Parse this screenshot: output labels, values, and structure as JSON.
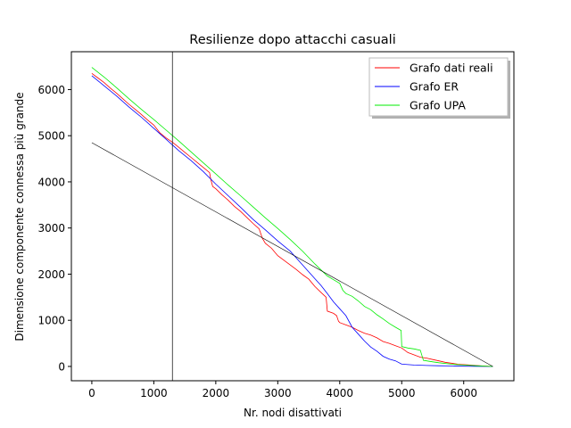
{
  "chart_data": {
    "type": "line",
    "title": "Resilienze dopo attacchi casuali",
    "xlabel": "Nr. nodi disattivati",
    "ylabel": "Dimensione componente connessa più grande",
    "xlim": [
      -330,
      6810
    ],
    "ylim": [
      -310,
      6820
    ],
    "xticks": [
      0,
      1000,
      2000,
      3000,
      4000,
      5000,
      6000
    ],
    "yticks": [
      0,
      1000,
      2000,
      3000,
      4000,
      5000,
      6000
    ],
    "grid": false,
    "legend_position": "top-right",
    "series": [
      {
        "name": "Grafo dati reali",
        "color": "#ff0000",
        "x": [
          0,
          100,
          200,
          300,
          400,
          500,
          600,
          700,
          800,
          900,
          1000,
          1100,
          1200,
          1300,
          1400,
          1500,
          1600,
          1700,
          1800,
          1900,
          1920,
          1950,
          2000,
          2100,
          2200,
          2300,
          2400,
          2500,
          2600,
          2700,
          2750,
          2800,
          2900,
          3000,
          3100,
          3200,
          3300,
          3400,
          3500,
          3600,
          3700,
          3780,
          3800,
          3900,
          3950,
          3980,
          4000,
          4100,
          4200,
          4300,
          4400,
          4500,
          4600,
          4700,
          4800,
          4900,
          5000,
          5100,
          5200,
          5300,
          5400,
          5500,
          5600,
          5700,
          5800,
          5900,
          6000,
          6100,
          6200,
          6300,
          6470
        ],
        "y": [
          6350,
          6250,
          6150,
          6030,
          5920,
          5800,
          5680,
          5570,
          5460,
          5340,
          5230,
          5060,
          4950,
          4860,
          4750,
          4640,
          4530,
          4420,
          4310,
          4200,
          4050,
          3900,
          3850,
          3720,
          3600,
          3470,
          3360,
          3230,
          3100,
          2980,
          2780,
          2670,
          2560,
          2400,
          2300,
          2200,
          2100,
          1990,
          1890,
          1730,
          1600,
          1500,
          1200,
          1150,
          1100,
          980,
          950,
          900,
          850,
          780,
          720,
          680,
          620,
          540,
          500,
          450,
          400,
          300,
          250,
          200,
          180,
          150,
          120,
          90,
          70,
          50,
          40,
          30,
          20,
          10,
          0
        ]
      },
      {
        "name": "Grafo ER",
        "color": "#0000ff",
        "x": [
          0,
          200,
          400,
          600,
          800,
          1000,
          1200,
          1400,
          1600,
          1800,
          2000,
          2200,
          2400,
          2600,
          2800,
          3000,
          3200,
          3400,
          3600,
          3700,
          3800,
          3900,
          4000,
          4100,
          4200,
          4300,
          4400,
          4500,
          4600,
          4700,
          4800,
          4900,
          5000,
          5200,
          5400,
          5600,
          5800,
          6000,
          6200,
          6470
        ],
        "y": [
          6300,
          6080,
          5860,
          5620,
          5400,
          5160,
          4920,
          4680,
          4460,
          4220,
          3950,
          3700,
          3450,
          3190,
          2960,
          2720,
          2500,
          2200,
          1900,
          1750,
          1580,
          1400,
          1250,
          1100,
          850,
          700,
          550,
          420,
          330,
          220,
          160,
          120,
          50,
          30,
          20,
          15,
          10,
          5,
          2,
          0
        ]
      },
      {
        "name": "Grafo UPA",
        "color": "#00ee00",
        "x": [
          0,
          200,
          400,
          600,
          800,
          1000,
          1200,
          1400,
          1600,
          1800,
          2000,
          2200,
          2400,
          2600,
          2800,
          3000,
          3200,
          3400,
          3600,
          3800,
          3900,
          4000,
          4050,
          4100,
          4200,
          4300,
          4400,
          4500,
          4600,
          4700,
          4800,
          4900,
          4990,
          5000,
          5100,
          5200,
          5300,
          5350,
          5400,
          5500,
          5600,
          5800,
          6000,
          6200,
          6470
        ],
        "y": [
          6480,
          6270,
          6040,
          5800,
          5570,
          5350,
          5120,
          4890,
          4650,
          4410,
          4170,
          3930,
          3700,
          3460,
          3220,
          2990,
          2750,
          2500,
          2220,
          1960,
          1880,
          1800,
          1650,
          1580,
          1520,
          1420,
          1300,
          1230,
          1120,
          1030,
          930,
          850,
          780,
          430,
          400,
          380,
          350,
          130,
          120,
          100,
          80,
          50,
          30,
          15,
          0
        ]
      },
      {
        "name": "",
        "color": "#000000",
        "x": [
          0,
          6470
        ],
        "y": [
          4850,
          0
        ]
      }
    ],
    "vertical_lines": [
      {
        "x": 1300,
        "color": "#000000"
      }
    ]
  }
}
